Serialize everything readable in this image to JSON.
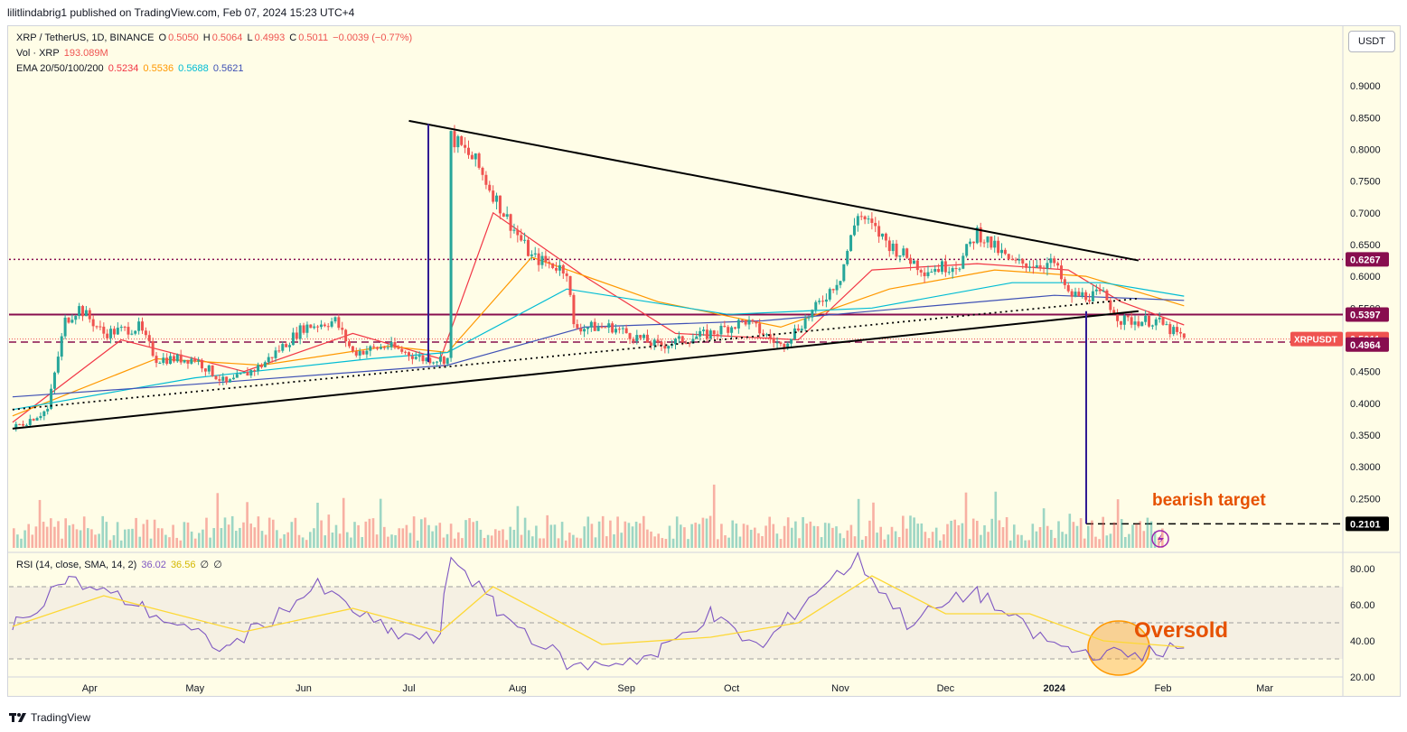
{
  "header": {
    "published": "lilitlindabrig1 published on TradingView.com, Feb 07, 2024 15:23 UTC+4"
  },
  "legend": {
    "symbol": "XRP / TetherUS, 1D, BINANCE",
    "o_label": "O",
    "o": "0.5050",
    "h_label": "H",
    "h": "0.5064",
    "l_label": "L",
    "l": "0.4993",
    "c_label": "C",
    "c": "0.5011",
    "change": "−0.0039 (−0.77%)",
    "vol_label": "Vol · XRP",
    "vol": "193.089M",
    "ema_label": "EMA 20/50/100/200",
    "ema20": "0.5234",
    "ema50": "0.5536",
    "ema100": "0.5688",
    "ema200": "0.5621"
  },
  "currency_button": "USDT",
  "rsi_legend": {
    "label": "RSI (14, close, SMA, 14, 2)",
    "rsi": "36.02",
    "sma": "36.56",
    "z1": "∅",
    "z2": "∅"
  },
  "annotations": {
    "bearish_target": "bearish target",
    "oversold": "Oversold"
  },
  "price_badges": {
    "level_high": "0.6267",
    "level_mid": "0.5397",
    "symbol_tag": "XRPUSDT",
    "last": "0.5011",
    "level_low": "0.4964",
    "target": "0.2101"
  },
  "footer": {
    "brand": "TradingView"
  },
  "colors": {
    "up": "#26a69a",
    "down": "#ef5350",
    "ema20": "#f23645",
    "ema50": "#ff9800",
    "ema100": "#00bcd4",
    "ema200": "#3f51b5",
    "rsi": "#7e57c2",
    "rsi_sma": "#fdd835",
    "level": "#880e4f",
    "bg": "#fffde7"
  },
  "chart_data": [
    {
      "type": "candlestick",
      "title": "XRP / TetherUS, 1D, BINANCE",
      "y_axis": {
        "ticks": [
          0.25,
          0.3,
          0.35,
          0.4,
          0.45,
          0.5,
          0.55,
          0.6,
          0.65,
          0.7,
          0.75,
          0.8,
          0.85,
          0.9
        ],
        "tick_labels": [
          "0.2500",
          "0.3000",
          "0.3500",
          "0.4000",
          "0.4500",
          "0.5000",
          "0.5500",
          "0.6000",
          "0.6500",
          "0.7000",
          "0.7500",
          "0.8000",
          "0.8500",
          "0.9000"
        ],
        "range": [
          0.175,
          0.95
        ]
      },
      "x_axis": {
        "tick_labels": [
          "Apr",
          "May",
          "Jun",
          "Jul",
          "Aug",
          "Sep",
          "Oct",
          "Nov",
          "Dec",
          "2024",
          "Feb",
          "Mar"
        ]
      },
      "horizontal_levels": [
        0.6267,
        0.5397,
        0.4964,
        0.2101
      ],
      "price_path": [
        {
          "t": "2023-03-10",
          "close": 0.36
        },
        {
          "t": "2023-03-20",
          "close": 0.39
        },
        {
          "t": "2023-03-25",
          "close": 0.53
        },
        {
          "t": "2023-03-29",
          "close": 0.55
        },
        {
          "t": "2023-04-05",
          "close": 0.51
        },
        {
          "t": "2023-04-15",
          "close": 0.52
        },
        {
          "t": "2023-04-20",
          "close": 0.47
        },
        {
          "t": "2023-05-01",
          "close": 0.47
        },
        {
          "t": "2023-05-10",
          "close": 0.43
        },
        {
          "t": "2023-05-20",
          "close": 0.46
        },
        {
          "t": "2023-06-01",
          "close": 0.52
        },
        {
          "t": "2023-06-10",
          "close": 0.53
        },
        {
          "t": "2023-06-15",
          "close": 0.48
        },
        {
          "t": "2023-06-25",
          "close": 0.49
        },
        {
          "t": "2023-07-05",
          "close": 0.47
        },
        {
          "t": "2023-07-12",
          "close": 0.47
        },
        {
          "t": "2023-07-13",
          "close": 0.82
        },
        {
          "t": "2023-07-20",
          "close": 0.78
        },
        {
          "t": "2023-07-28",
          "close": 0.7
        },
        {
          "t": "2023-08-05",
          "close": 0.63
        },
        {
          "t": "2023-08-15",
          "close": 0.61
        },
        {
          "t": "2023-08-17",
          "close": 0.52
        },
        {
          "t": "2023-08-28",
          "close": 0.52
        },
        {
          "t": "2023-09-10",
          "close": 0.49
        },
        {
          "t": "2023-09-25",
          "close": 0.51
        },
        {
          "t": "2023-10-05",
          "close": 0.53
        },
        {
          "t": "2023-10-15",
          "close": 0.49
        },
        {
          "t": "2023-10-25",
          "close": 0.55
        },
        {
          "t": "2023-11-01",
          "close": 0.6
        },
        {
          "t": "2023-11-06",
          "close": 0.7
        },
        {
          "t": "2023-11-15",
          "close": 0.65
        },
        {
          "t": "2023-11-25",
          "close": 0.61
        },
        {
          "t": "2023-12-05",
          "close": 0.62
        },
        {
          "t": "2023-12-10",
          "close": 0.67
        },
        {
          "t": "2023-12-20",
          "close": 0.62
        },
        {
          "t": "2024-01-01",
          "close": 0.62
        },
        {
          "t": "2024-01-05",
          "close": 0.57
        },
        {
          "t": "2024-01-15",
          "close": 0.57
        },
        {
          "t": "2024-01-20",
          "close": 0.53
        },
        {
          "t": "2024-01-30",
          "close": 0.53
        },
        {
          "t": "2024-02-07",
          "close": 0.5011
        }
      ],
      "ema": {
        "ema20": [
          {
            "t": "2023-03-10",
            "v": 0.37
          },
          {
            "t": "2023-04-10",
            "v": 0.5
          },
          {
            "t": "2023-05-15",
            "v": 0.45
          },
          {
            "t": "2023-06-15",
            "v": 0.51
          },
          {
            "t": "2023-07-10",
            "v": 0.47
          },
          {
            "t": "2023-07-25",
            "v": 0.7
          },
          {
            "t": "2023-08-20",
            "v": 0.6
          },
          {
            "t": "2023-09-15",
            "v": 0.51
          },
          {
            "t": "2023-10-20",
            "v": 0.5
          },
          {
            "t": "2023-11-10",
            "v": 0.61
          },
          {
            "t": "2023-12-10",
            "v": 0.62
          },
          {
            "t": "2024-01-05",
            "v": 0.61
          },
          {
            "t": "2024-01-20",
            "v": 0.56
          },
          {
            "t": "2024-02-07",
            "v": 0.5234
          }
        ],
        "ema50": [
          {
            "t": "2023-03-10",
            "v": 0.38
          },
          {
            "t": "2023-04-20",
            "v": 0.47
          },
          {
            "t": "2023-05-20",
            "v": 0.46
          },
          {
            "t": "2023-06-25",
            "v": 0.49
          },
          {
            "t": "2023-07-12",
            "v": 0.48
          },
          {
            "t": "2023-08-05",
            "v": 0.63
          },
          {
            "t": "2023-09-10",
            "v": 0.56
          },
          {
            "t": "2023-10-15",
            "v": 0.52
          },
          {
            "t": "2023-11-15",
            "v": 0.58
          },
          {
            "t": "2023-12-15",
            "v": 0.61
          },
          {
            "t": "2024-01-10",
            "v": 0.6
          },
          {
            "t": "2024-02-07",
            "v": 0.5536
          }
        ],
        "ema100": [
          {
            "t": "2023-03-10",
            "v": 0.39
          },
          {
            "t": "2023-05-01",
            "v": 0.44
          },
          {
            "t": "2023-06-20",
            "v": 0.47
          },
          {
            "t": "2023-07-12",
            "v": 0.48
          },
          {
            "t": "2023-08-15",
            "v": 0.58
          },
          {
            "t": "2023-09-30",
            "v": 0.54
          },
          {
            "t": "2023-11-10",
            "v": 0.55
          },
          {
            "t": "2023-12-20",
            "v": 0.59
          },
          {
            "t": "2024-01-15",
            "v": 0.59
          },
          {
            "t": "2024-02-07",
            "v": 0.5688
          }
        ],
        "ema200": [
          {
            "t": "2023-03-10",
            "v": 0.41
          },
          {
            "t": "2023-05-01",
            "v": 0.43
          },
          {
            "t": "2023-07-12",
            "v": 0.46
          },
          {
            "t": "2023-08-20",
            "v": 0.52
          },
          {
            "t": "2023-10-10",
            "v": 0.53
          },
          {
            "t": "2023-11-20",
            "v": 0.55
          },
          {
            "t": "2024-01-01",
            "v": 0.57
          },
          {
            "t": "2024-02-07",
            "v": 0.5621
          }
        ]
      },
      "trendlines": [
        {
          "name": "upper",
          "from": {
            "t": "2023-07-01",
            "v": 0.845
          },
          "to": {
            "t": "2024-01-25",
            "v": 0.625
          }
        },
        {
          "name": "lower",
          "from": {
            "t": "2023-03-10",
            "v": 0.36
          },
          "to": {
            "t": "2024-01-25",
            "v": 0.545
          }
        },
        {
          "name": "dotted-lower",
          "from": {
            "t": "2023-03-10",
            "v": 0.39
          },
          "to": {
            "t": "2024-01-25",
            "v": 0.565
          }
        }
      ],
      "legend": "top-left"
    },
    {
      "type": "line",
      "title": "RSI (14, close, SMA, 14, 2)",
      "y_axis": {
        "ticks": [
          20,
          40,
          60,
          80
        ],
        "tick_labels": [
          "20.00",
          "40.00",
          "60.00",
          "80.00"
        ],
        "range": [
          15,
          85
        ]
      },
      "bands": [
        30,
        50,
        70
      ],
      "series": [
        {
          "values": [
            {
              "t": "2023-03-10",
              "v": 45
            },
            {
              "t": "2023-03-25",
              "v": 75
            },
            {
              "t": "2023-04-15",
              "v": 60
            },
            {
              "t": "2023-05-10",
              "v": 35
            },
            {
              "t": "2023-05-25",
              "v": 55
            },
            {
              "t": "2023-06-05",
              "v": 70
            },
            {
              "t": "2023-06-25",
              "v": 45
            },
            {
              "t": "2023-07-10",
              "v": 40
            },
            {
              "t": "2023-07-13",
              "v": 88
            },
            {
              "t": "2023-07-25",
              "v": 60
            },
            {
              "t": "2023-08-17",
              "v": 25
            },
            {
              "t": "2023-09-10",
              "v": 32
            },
            {
              "t": "2023-09-25",
              "v": 55
            },
            {
              "t": "2023-10-10",
              "v": 35
            },
            {
              "t": "2023-10-25",
              "v": 68
            },
            {
              "t": "2023-11-06",
              "v": 85
            },
            {
              "t": "2023-11-20",
              "v": 50
            },
            {
              "t": "2023-12-10",
              "v": 68
            },
            {
              "t": "2023-12-25",
              "v": 45
            },
            {
              "t": "2024-01-05",
              "v": 35
            },
            {
              "t": "2024-01-20",
              "v": 32
            },
            {
              "t": "2024-02-07",
              "v": 36.02
            }
          ]
        },
        {
          "values": [
            {
              "t": "2023-03-10",
              "v": 48
            },
            {
              "t": "2023-04-05",
              "v": 65
            },
            {
              "t": "2023-05-15",
              "v": 45
            },
            {
              "t": "2023-06-15",
              "v": 58
            },
            {
              "t": "2023-07-10",
              "v": 45
            },
            {
              "t": "2023-07-25",
              "v": 70
            },
            {
              "t": "2023-08-25",
              "v": 38
            },
            {
              "t": "2023-09-25",
              "v": 42
            },
            {
              "t": "2023-10-20",
              "v": 50
            },
            {
              "t": "2023-11-10",
              "v": 76
            },
            {
              "t": "2023-12-01",
              "v": 55
            },
            {
              "t": "2023-12-25",
              "v": 55
            },
            {
              "t": "2024-01-15",
              "v": 40
            },
            {
              "t": "2024-02-07",
              "v": 36.56
            }
          ]
        }
      ]
    }
  ]
}
